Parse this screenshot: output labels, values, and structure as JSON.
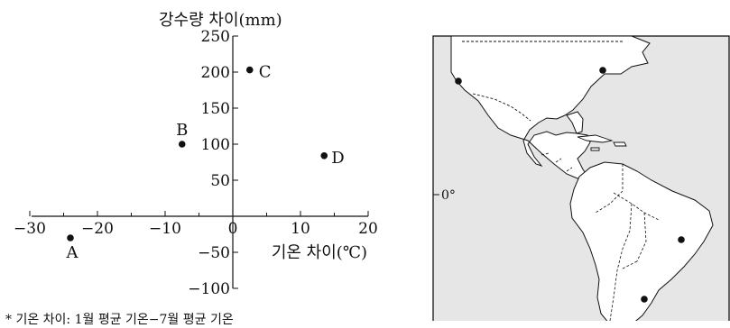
{
  "chart_data": {
    "type": "scatter",
    "ylabel": "강수량 차이(mm)",
    "xlabel": "기온 차이(℃)",
    "xlim": [
      -30,
      20
    ],
    "ylim": [
      -100,
      250
    ],
    "x_tick_labels": [
      "−30",
      "−20",
      "−10",
      "0",
      "10",
      "20"
    ],
    "x_tick_values": [
      -30,
      -20,
      -10,
      0,
      10,
      20
    ],
    "y_tick_labels": [
      "250",
      "200",
      "150",
      "100",
      "50",
      "−50",
      "−100"
    ],
    "y_tick_values": [
      250,
      200,
      150,
      100,
      50,
      -50,
      -100
    ],
    "points": [
      {
        "label": "A",
        "x": -24,
        "y": -30
      },
      {
        "label": "B",
        "x": -7.5,
        "y": 100
      },
      {
        "label": "C",
        "x": 2.5,
        "y": 203
      },
      {
        "label": "D",
        "x": 13.5,
        "y": 84
      }
    ],
    "footnote": "* 기온 차이: 1월 평균 기온−7월 평균 기온",
    "grid": false
  },
  "map": {
    "equator_label": "0°",
    "region": "Americas",
    "markers": 4
  }
}
